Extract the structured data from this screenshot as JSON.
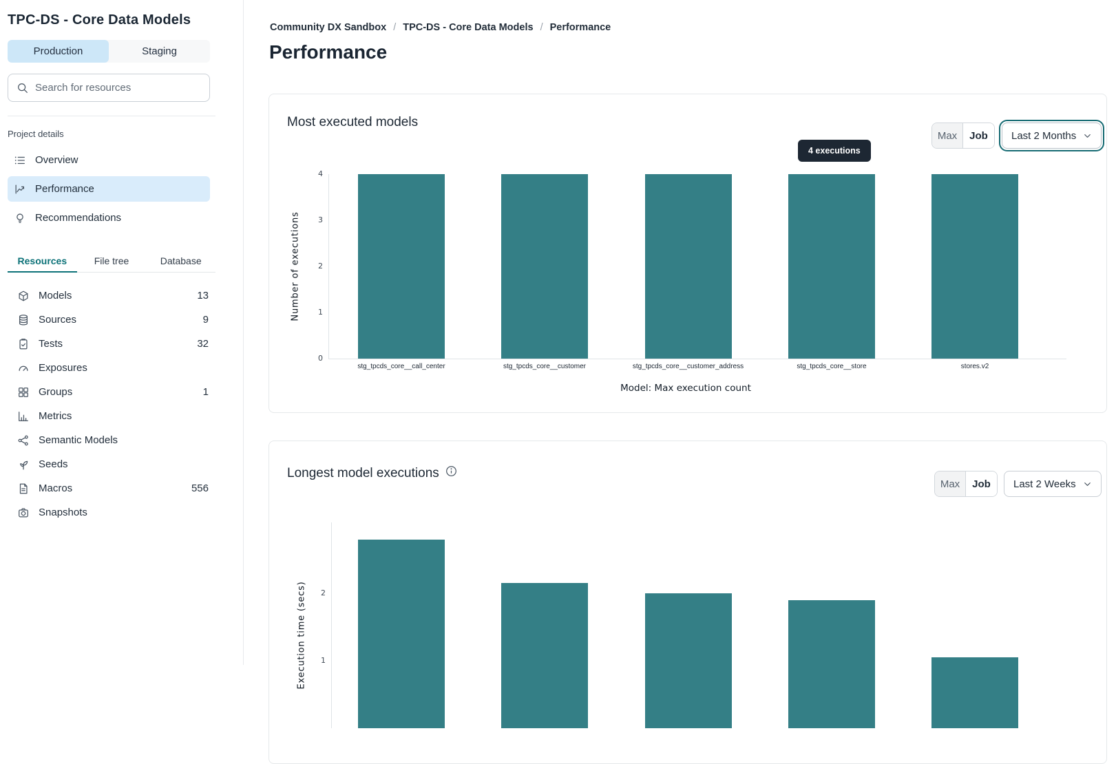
{
  "sidebar": {
    "title": "TPC-DS - Core Data Models",
    "env_tabs": [
      {
        "label": "Production",
        "active": true
      },
      {
        "label": "Staging",
        "active": false
      }
    ],
    "search_placeholder": "Search for resources",
    "section_label": "Project details",
    "nav": [
      {
        "label": "Overview",
        "icon": "list-icon",
        "active": false
      },
      {
        "label": "Performance",
        "icon": "trend-chart-icon",
        "active": true
      },
      {
        "label": "Recommendations",
        "icon": "lightbulb-icon",
        "active": false
      }
    ],
    "resource_tabs": [
      {
        "label": "Resources",
        "active": true
      },
      {
        "label": "File tree",
        "active": false
      },
      {
        "label": "Database",
        "active": false
      }
    ],
    "resources": [
      {
        "label": "Models",
        "icon": "cube-icon",
        "count": "13"
      },
      {
        "label": "Sources",
        "icon": "database-icon",
        "count": "9"
      },
      {
        "label": "Tests",
        "icon": "clipboard-check-icon",
        "count": "32"
      },
      {
        "label": "Exposures",
        "icon": "gauge-icon",
        "count": ""
      },
      {
        "label": "Groups",
        "icon": "grid-icon",
        "count": "1"
      },
      {
        "label": "Metrics",
        "icon": "bar-chart-icon",
        "count": ""
      },
      {
        "label": "Semantic Models",
        "icon": "network-icon",
        "count": ""
      },
      {
        "label": "Seeds",
        "icon": "seedling-icon",
        "count": ""
      },
      {
        "label": "Macros",
        "icon": "file-icon",
        "count": "556"
      },
      {
        "label": "Snapshots",
        "icon": "camera-icon",
        "count": ""
      }
    ]
  },
  "breadcrumb": {
    "items": [
      "Community DX Sandbox",
      "TPC-DS - Core Data Models",
      "Performance"
    ],
    "separator": "/"
  },
  "page_title": "Performance",
  "cards": [
    {
      "toggle_max": "Max",
      "toggle_job": "Job",
      "toggle_active": "Job",
      "range": "Last 2 Months",
      "tooltip": "4 executions"
    },
    {
      "toggle_max": "Max",
      "toggle_job": "Job",
      "toggle_active": "Job",
      "range": "Last 2 Weeks"
    }
  ],
  "chart_data": [
    {
      "type": "bar",
      "title": "Most executed models",
      "categories": [
        "stg_tpcds_core__call_center",
        "stg_tpcds_core__customer",
        "stg_tpcds_core__customer_address",
        "stg_tpcds_core__store",
        "stores.v2"
      ],
      "values": [
        4,
        4,
        4,
        4,
        4
      ],
      "xlabel": "Model: Max execution count",
      "ylabel": "Number of executions",
      "ylim": [
        0,
        4
      ],
      "yticks": [
        0,
        1,
        2,
        3,
        4
      ],
      "grid": false,
      "legend": "none",
      "tooltip": {
        "text": "4 executions",
        "bar_index": 3
      }
    },
    {
      "type": "bar",
      "title": "Longest model executions",
      "categories": [
        "",
        "",
        "",
        "",
        ""
      ],
      "values": [
        2.8,
        2.15,
        2.0,
        1.9,
        1.05
      ],
      "ylabel": "Execution time (secs)",
      "yticks_visible": [
        1,
        2
      ],
      "grid": false,
      "legend": "none",
      "note": "chart cropped by bottom edge of viewport"
    }
  ],
  "colors": {
    "bar": "#347f86",
    "accent_teal": "#0c7278",
    "selected_nav_bg": "#d9ecfb",
    "env_tab_active_bg": "#cde7f8",
    "tooltip_bg": "#1d2733"
  }
}
